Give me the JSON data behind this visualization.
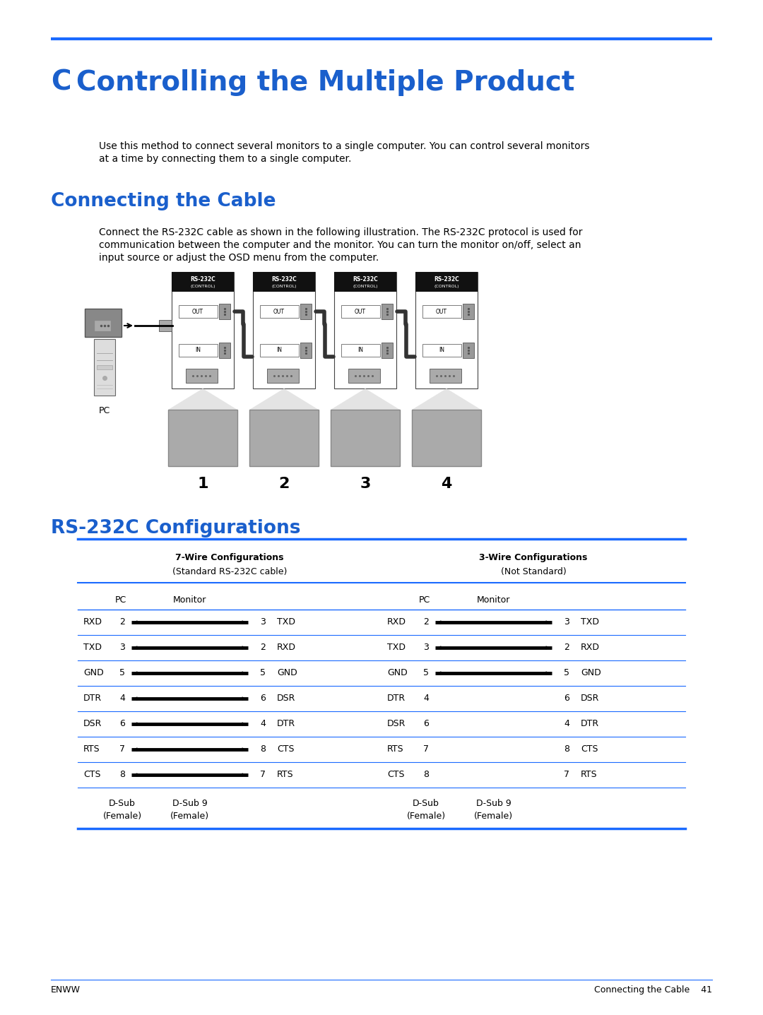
{
  "bg_color": "#ffffff",
  "blue_color": "#1a5fcc",
  "blue_line_color": "#1a6aff",
  "title_c": "C",
  "title_rest": "   Controlling the Multiple Product",
  "section1_title": "Connecting the Cable",
  "section2_title": "RS-232C Configurations",
  "body_text1_line1": "Use this method to connect several monitors to a single computer. You can control several monitors",
  "body_text1_line2": "at a time by connecting them to a single computer.",
  "body_text2_line1": "Connect the RS-232C cable as shown in the following illustration. The RS-232C protocol is used for",
  "body_text2_line2": "communication between the computer and the monitor. You can turn the monitor on/off, select an",
  "body_text2_line3": "input source or adjust the OSD menu from the computer.",
  "footer_left": "ENWW",
  "footer_right": "Connecting the Cable    41",
  "table_header1": "7-Wire Configurations",
  "table_header1b": "(Standard RS-232C cable)",
  "table_header2": "3-Wire Configurations",
  "table_header2b": "(Not Standard)",
  "monitor_labels": [
    "1",
    "2",
    "3",
    "4"
  ],
  "pc_label": "PC",
  "wire7_rows": [
    {
      "sig": "RXD",
      "pc_pin": "2",
      "mon_pin": "3",
      "mon_sig": "TXD",
      "has_line": true
    },
    {
      "sig": "TXD",
      "pc_pin": "3",
      "mon_pin": "2",
      "mon_sig": "RXD",
      "has_line": true
    },
    {
      "sig": "GND",
      "pc_pin": "5",
      "mon_pin": "5",
      "mon_sig": "GND",
      "has_line": true
    },
    {
      "sig": "DTR",
      "pc_pin": "4",
      "mon_pin": "6",
      "mon_sig": "DSR",
      "has_line": true
    },
    {
      "sig": "DSR",
      "pc_pin": "6",
      "mon_pin": "4",
      "mon_sig": "DTR",
      "has_line": true
    },
    {
      "sig": "RTS",
      "pc_pin": "7",
      "mon_pin": "8",
      "mon_sig": "CTS",
      "has_line": true
    },
    {
      "sig": "CTS",
      "pc_pin": "8",
      "mon_pin": "7",
      "mon_sig": "RTS",
      "has_line": true
    }
  ],
  "wire3_rows": [
    {
      "sig": "RXD",
      "pc_pin": "2",
      "mon_pin": "3",
      "mon_sig": "TXD",
      "has_line": true
    },
    {
      "sig": "TXD",
      "pc_pin": "3",
      "mon_pin": "2",
      "mon_sig": "RXD",
      "has_line": true
    },
    {
      "sig": "GND",
      "pc_pin": "5",
      "mon_pin": "5",
      "mon_sig": "GND",
      "has_line": true
    },
    {
      "sig": "DTR",
      "pc_pin": "4",
      "mon_pin": "6",
      "mon_sig": "DSR",
      "has_line": false
    },
    {
      "sig": "DSR",
      "pc_pin": "6",
      "mon_pin": "4",
      "mon_sig": "DTR",
      "has_line": false
    },
    {
      "sig": "RTS",
      "pc_pin": "7",
      "mon_pin": "8",
      "mon_sig": "CTS",
      "has_line": false
    },
    {
      "sig": "CTS",
      "pc_pin": "8",
      "mon_pin": "7",
      "mon_sig": "RTS",
      "has_line": false
    }
  ],
  "table_footer_dsub_left": "D-Sub",
  "table_footer_dsub9_left": "D-Sub 9",
  "table_footer_female_left": "(Female)",
  "table_footer_dsub_right": "D-Sub",
  "table_footer_dsub9_right": "D-Sub 9",
  "table_footer_female_right": "(Female)"
}
